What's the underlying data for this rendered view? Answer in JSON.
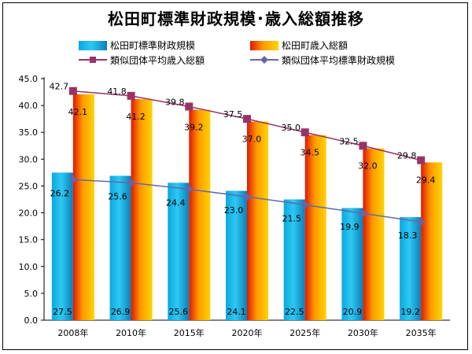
{
  "chart_data": {
    "type": "bar",
    "title": "松田町標準財政規模･歳入総額推移",
    "categories": [
      "2008年",
      "2010年",
      "2015年",
      "2020年",
      "2025年",
      "2030年",
      "2035年"
    ],
    "ylim": [
      0,
      45
    ],
    "yticks": [
      "0.0",
      "5.0",
      "10.0",
      "15.0",
      "20.0",
      "25.0",
      "30.0",
      "35.0",
      "40.0",
      "45.0"
    ],
    "series": [
      {
        "name": "松田町標準財政規模",
        "kind": "bar",
        "values": [
          27.5,
          26.9,
          25.6,
          24.1,
          22.5,
          20.9,
          19.2
        ],
        "labels": [
          "27.5",
          "26.9",
          "25.6",
          "24.1",
          "22.5",
          "20.9",
          "19.2"
        ],
        "color": "#19b5e6"
      },
      {
        "name": "松田町歳入総額",
        "kind": "bar",
        "values": [
          42.1,
          41.2,
          39.2,
          37.0,
          34.5,
          32.0,
          29.4
        ],
        "labels": [
          "42.1",
          "41.2",
          "39.2",
          "37.0",
          "34.5",
          "32.0",
          "29.4"
        ],
        "color": "#ff8c00"
      },
      {
        "name": "類似団体平均歳入総額",
        "kind": "line",
        "values": [
          42.7,
          41.8,
          39.8,
          37.5,
          35.0,
          32.5,
          29.8
        ],
        "labels": [
          "42.7",
          "41.8",
          "39.8",
          "37.5",
          "35.0",
          "32.5",
          "29.8"
        ],
        "color": "#993366",
        "marker": "square"
      },
      {
        "name": "類似団体平均標準財政規模",
        "kind": "line",
        "values": [
          26.2,
          25.6,
          24.4,
          23.0,
          21.5,
          19.9,
          18.3
        ],
        "labels": [
          "26.2",
          "25.6",
          "24.4",
          "23.0",
          "21.5",
          "19.9",
          "18.3"
        ],
        "color": "#6666aa",
        "marker": "diamond"
      }
    ],
    "legend": "top",
    "grid": false
  }
}
